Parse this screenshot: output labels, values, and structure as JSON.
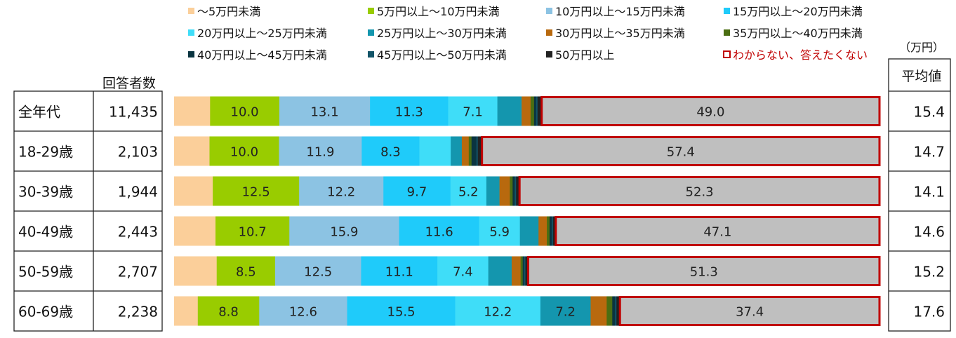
{
  "chart_data": {
    "type": "bar",
    "orientation": "horizontal",
    "stacked": true,
    "percent_scale": true,
    "xlim": [
      0,
      100
    ],
    "grid": false,
    "legend_position": "top",
    "title": "",
    "xlabel": "",
    "ylabel": "",
    "col_headers": {
      "respondents": "回答者数",
      "average": "平均値",
      "average_unit": "（万円）"
    },
    "categories": [
      "全年代",
      "18-29歳",
      "30-39歳",
      "40-49歳",
      "50-59歳",
      "60-69歳"
    ],
    "respondents": [
      "11,435",
      "2,103",
      "1,944",
      "2,443",
      "2,707",
      "2,238"
    ],
    "averages": [
      "15.4",
      "14.7",
      "14.1",
      "14.6",
      "15.2",
      "17.6"
    ],
    "series": [
      {
        "name": "～5万円未満",
        "color": "#FBCF9A",
        "values": [
          5.2,
          5.1,
          5.6,
          6.0,
          6.2,
          3.4
        ],
        "labels": [
          "",
          "",
          "",
          "",
          "",
          ""
        ]
      },
      {
        "name": "5万円以上～10万円未満",
        "color": "#99CC00",
        "values": [
          10.0,
          10.0,
          12.5,
          10.7,
          8.5,
          8.8
        ],
        "labels": [
          "10.0",
          "10.0",
          "12.5",
          "10.7",
          "8.5",
          "8.8"
        ]
      },
      {
        "name": "10万円以上～15万円未満",
        "color": "#8CC3E3",
        "values": [
          13.1,
          11.9,
          12.2,
          15.9,
          12.5,
          12.6
        ],
        "labels": [
          "13.1",
          "11.9",
          "12.2",
          "15.9",
          "12.5",
          "12.6"
        ]
      },
      {
        "name": "15万円以上～20万円未満",
        "color": "#1FCBFA",
        "values": [
          11.3,
          8.3,
          9.7,
          11.6,
          11.1,
          15.5
        ],
        "labels": [
          "11.3",
          "8.3",
          "9.7",
          "11.6",
          "11.1",
          "15.5"
        ]
      },
      {
        "name": "20万円以上～25万円未満",
        "color": "#3FDDF8",
        "values": [
          7.1,
          4.5,
          5.2,
          5.9,
          7.4,
          12.2
        ],
        "labels": [
          "7.1",
          "",
          "5.2",
          "5.9",
          "7.4",
          "12.2"
        ]
      },
      {
        "name": "25万円以上～30万円未満",
        "color": "#1496AE",
        "values": [
          3.5,
          1.6,
          1.9,
          2.7,
          3.4,
          7.2
        ],
        "labels": [
          "",
          "",
          "",
          "",
          "",
          "7.2"
        ]
      },
      {
        "name": "30万円以上～35万円未満",
        "color": "#B8690E",
        "values": [
          1.3,
          1.0,
          1.5,
          1.2,
          1.3,
          2.3
        ],
        "labels": [
          "",
          "",
          "",
          "",
          "",
          ""
        ]
      },
      {
        "name": "35万円以上～40万円未満",
        "color": "#4B6E12",
        "values": [
          0.5,
          0.4,
          0.4,
          0.4,
          0.3,
          0.8
        ],
        "labels": [
          "",
          "",
          "",
          "",
          "",
          ""
        ]
      },
      {
        "name": "40万円以上～45万円未満",
        "color": "#0A3440",
        "values": [
          0.3,
          0.7,
          0.3,
          0.3,
          0.2,
          0.4
        ],
        "labels": [
          "",
          "",
          "",
          "",
          "",
          ""
        ]
      },
      {
        "name": "45万円以上～50万円未満",
        "color": "#135468",
        "values": [
          0.2,
          0.2,
          0.2,
          0.2,
          0.2,
          0.2
        ],
        "labels": [
          "",
          "",
          "",
          "",
          "",
          ""
        ]
      },
      {
        "name": "50万円以上",
        "color": "#222222",
        "values": [
          0.5,
          0.5,
          0.4,
          0.3,
          0.3,
          0.4
        ],
        "labels": [
          "",
          "",
          "",
          "",
          "",
          ""
        ]
      },
      {
        "name": "わからない、答えたくない",
        "color": "#BFBFBF",
        "border": "#C00000",
        "highlight": true,
        "values": [
          49.0,
          57.4,
          52.3,
          47.1,
          51.3,
          37.4
        ],
        "labels": [
          "49.0",
          "57.4",
          "52.3",
          "47.1",
          "51.3",
          "37.4"
        ]
      }
    ]
  }
}
